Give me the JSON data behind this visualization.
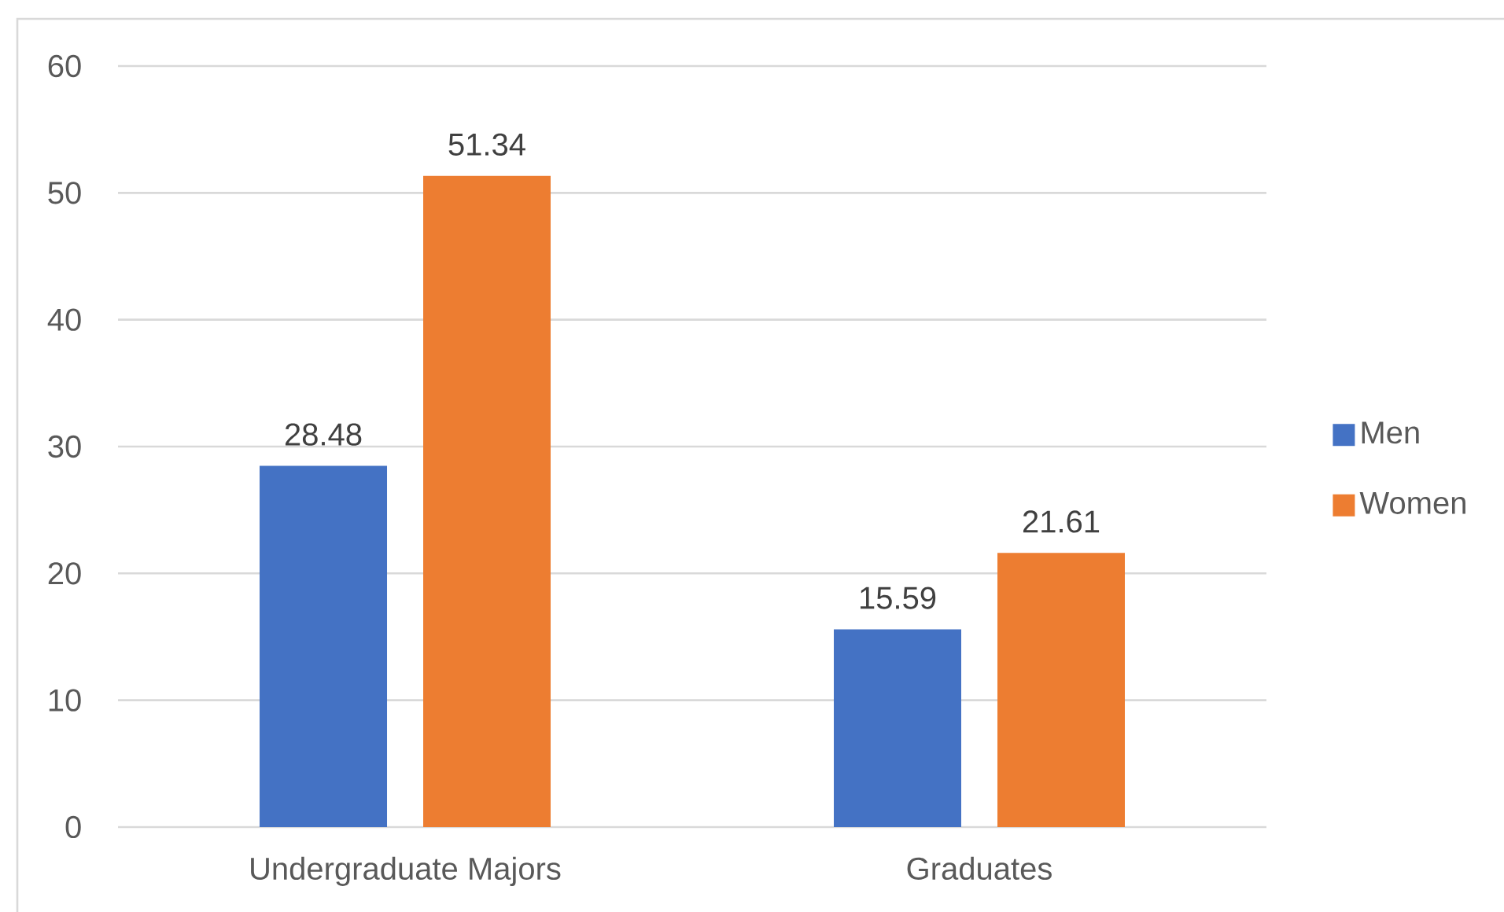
{
  "chart_data": {
    "type": "bar",
    "categories": [
      "Undergraduate Majors",
      "Graduates"
    ],
    "series": [
      {
        "name": "Men",
        "color": "#4472c4",
        "values": [
          28.48,
          15.59
        ]
      },
      {
        "name": "Women",
        "color": "#ed7d31",
        "values": [
          51.34,
          21.61
        ]
      }
    ],
    "ylim": [
      0,
      60
    ],
    "yticks": [
      0,
      10,
      20,
      30,
      40,
      50,
      60
    ],
    "grid": "y",
    "legend": "right",
    "data_labels": true
  }
}
